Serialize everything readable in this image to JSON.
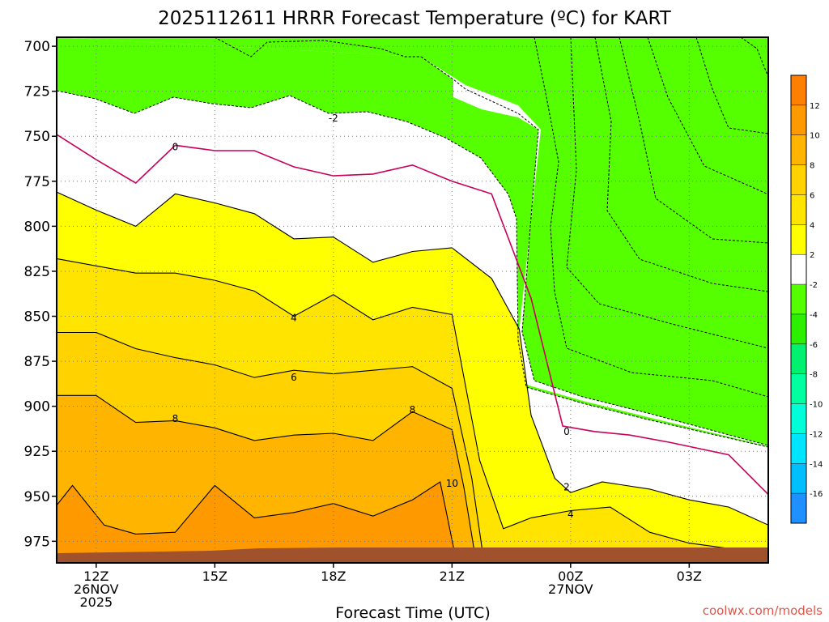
{
  "chart_data": {
    "type": "contour",
    "title": "2025112611 HRRR Forecast Temperature (ºC) for KART",
    "xlabel": "Forecast Time (UTC)",
    "ylabel": "",
    "credit": "coolwx.com/models",
    "x_range_hours": [
      11,
      29
    ],
    "y_range_hpa": [
      695,
      987
    ],
    "y_scale": "inverted",
    "x_ticks": [
      {
        "hour": 12,
        "lines": [
          "12Z",
          "26NOV",
          "2025"
        ]
      },
      {
        "hour": 15,
        "lines": [
          "15Z"
        ]
      },
      {
        "hour": 18,
        "lines": [
          "18Z"
        ]
      },
      {
        "hour": 21,
        "lines": [
          "21Z"
        ]
      },
      {
        "hour": 24,
        "lines": [
          "00Z",
          "27NOV"
        ]
      },
      {
        "hour": 27,
        "lines": [
          "03Z"
        ]
      }
    ],
    "y_ticks": [
      700,
      725,
      750,
      775,
      800,
      825,
      850,
      875,
      900,
      925,
      950,
      975
    ],
    "grid": true,
    "colorbar": {
      "placement": "right",
      "boundaries": [
        -18,
        -16,
        -14,
        -12,
        -10,
        -8,
        -6,
        -4,
        -2,
        2,
        4,
        6,
        8,
        10,
        12,
        14
      ],
      "tick_labels": [
        "-16",
        "-14",
        "-12",
        "-10",
        "-8",
        "-6",
        "-4",
        "-2",
        "2",
        "4",
        "6",
        "8",
        "10",
        "12"
      ],
      "colors": [
        "#1e90ff",
        "#00bfff",
        "#00e5ff",
        "#00ffd8",
        "#00ffa0",
        "#00f070",
        "#2df000",
        "#55ff00",
        "#ffffff",
        "#ffff00",
        "#ffe400",
        "#ffd200",
        "#ffb400",
        "#ff9900",
        "#ff8000"
      ]
    },
    "contour_labels": [
      {
        "value": "-2",
        "hour": 18.0,
        "hpa": 740
      },
      {
        "value": "0",
        "hour": 14.0,
        "hpa": 756
      },
      {
        "value": "0",
        "hour": 23.9,
        "hpa": 914
      },
      {
        "value": "4",
        "hour": 17.0,
        "hpa": 851
      },
      {
        "value": "6",
        "hour": 17.0,
        "hpa": 884
      },
      {
        "value": "8",
        "hour": 14.0,
        "hpa": 907
      },
      {
        "value": "8",
        "hour": 20.0,
        "hpa": 902
      },
      {
        "value": "10",
        "hour": 21.0,
        "hpa": 943
      },
      {
        "value": "2",
        "hour": 23.9,
        "hpa": 945
      },
      {
        "value": "4",
        "hour": 24.0,
        "hpa": 960
      }
    ],
    "isotherms": [
      {
        "value": 0,
        "points": [
          [
            11,
            749
          ],
          [
            12,
            763
          ],
          [
            13,
            776
          ],
          [
            14,
            755
          ],
          [
            15,
            758
          ],
          [
            16,
            758
          ],
          [
            17,
            767
          ],
          [
            18,
            772
          ],
          [
            19,
            771
          ],
          [
            20,
            766
          ],
          [
            21,
            775
          ],
          [
            22,
            782
          ],
          [
            23,
            840
          ],
          [
            23.8,
            911
          ],
          [
            24.6,
            914
          ],
          [
            25.5,
            916
          ],
          [
            26.5,
            920
          ],
          [
            28,
            927
          ],
          [
            29,
            949
          ]
        ]
      },
      {
        "value": 2,
        "points": [
          [
            11,
            781
          ],
          [
            12,
            791
          ],
          [
            13,
            800
          ],
          [
            14,
            782
          ],
          [
            15,
            787
          ],
          [
            16,
            793
          ],
          [
            17,
            807
          ],
          [
            18,
            806
          ],
          [
            19,
            820
          ],
          [
            20,
            814
          ],
          [
            21,
            812
          ],
          [
            22,
            829
          ],
          [
            22.7,
            857
          ],
          [
            23,
            905
          ],
          [
            23.6,
            940
          ],
          [
            24,
            948
          ],
          [
            24.8,
            942
          ],
          [
            26,
            946
          ],
          [
            27,
            952
          ],
          [
            28,
            956
          ],
          [
            29,
            966
          ]
        ]
      },
      {
        "value": 4,
        "points": [
          [
            11,
            818
          ],
          [
            12,
            822
          ],
          [
            13,
            826
          ],
          [
            14,
            826
          ],
          [
            15,
            830
          ],
          [
            16,
            836
          ],
          [
            17,
            850
          ],
          [
            18,
            838
          ],
          [
            19,
            852
          ],
          [
            20,
            845
          ],
          [
            21,
            849
          ],
          [
            21.7,
            930
          ],
          [
            22.3,
            968
          ],
          [
            23,
            962
          ],
          [
            24,
            958
          ],
          [
            25,
            956
          ],
          [
            26,
            970
          ],
          [
            27,
            976
          ],
          [
            28,
            979
          ]
        ]
      },
      {
        "value": 6,
        "points": [
          [
            11,
            859
          ],
          [
            12,
            859
          ],
          [
            13,
            868
          ],
          [
            14,
            873
          ],
          [
            15,
            877
          ],
          [
            16,
            884
          ],
          [
            17,
            880
          ],
          [
            18,
            882
          ],
          [
            19,
            880
          ],
          [
            20,
            878
          ],
          [
            21,
            890
          ],
          [
            21.5,
            940
          ],
          [
            21.8,
            985
          ]
        ]
      },
      {
        "value": 8,
        "points": [
          [
            11,
            894
          ],
          [
            12,
            894
          ],
          [
            13,
            909
          ],
          [
            14,
            908
          ],
          [
            15,
            912
          ],
          [
            16,
            919
          ],
          [
            17,
            916
          ],
          [
            18,
            915
          ],
          [
            19,
            919
          ],
          [
            20,
            903
          ],
          [
            21,
            913
          ],
          [
            21.3,
            945
          ],
          [
            21.6,
            985
          ]
        ]
      },
      {
        "value": 10,
        "points": [
          [
            11,
            955
          ],
          [
            11.4,
            944
          ],
          [
            12.2,
            966
          ],
          [
            13,
            971
          ],
          [
            14,
            970
          ],
          [
            15,
            944
          ],
          [
            16,
            962
          ],
          [
            17,
            959
          ],
          [
            18,
            954
          ],
          [
            19,
            961
          ],
          [
            20,
            952
          ],
          [
            20.7,
            942
          ],
          [
            21.1,
            985
          ]
        ]
      }
    ],
    "surface": "terrain"
  }
}
